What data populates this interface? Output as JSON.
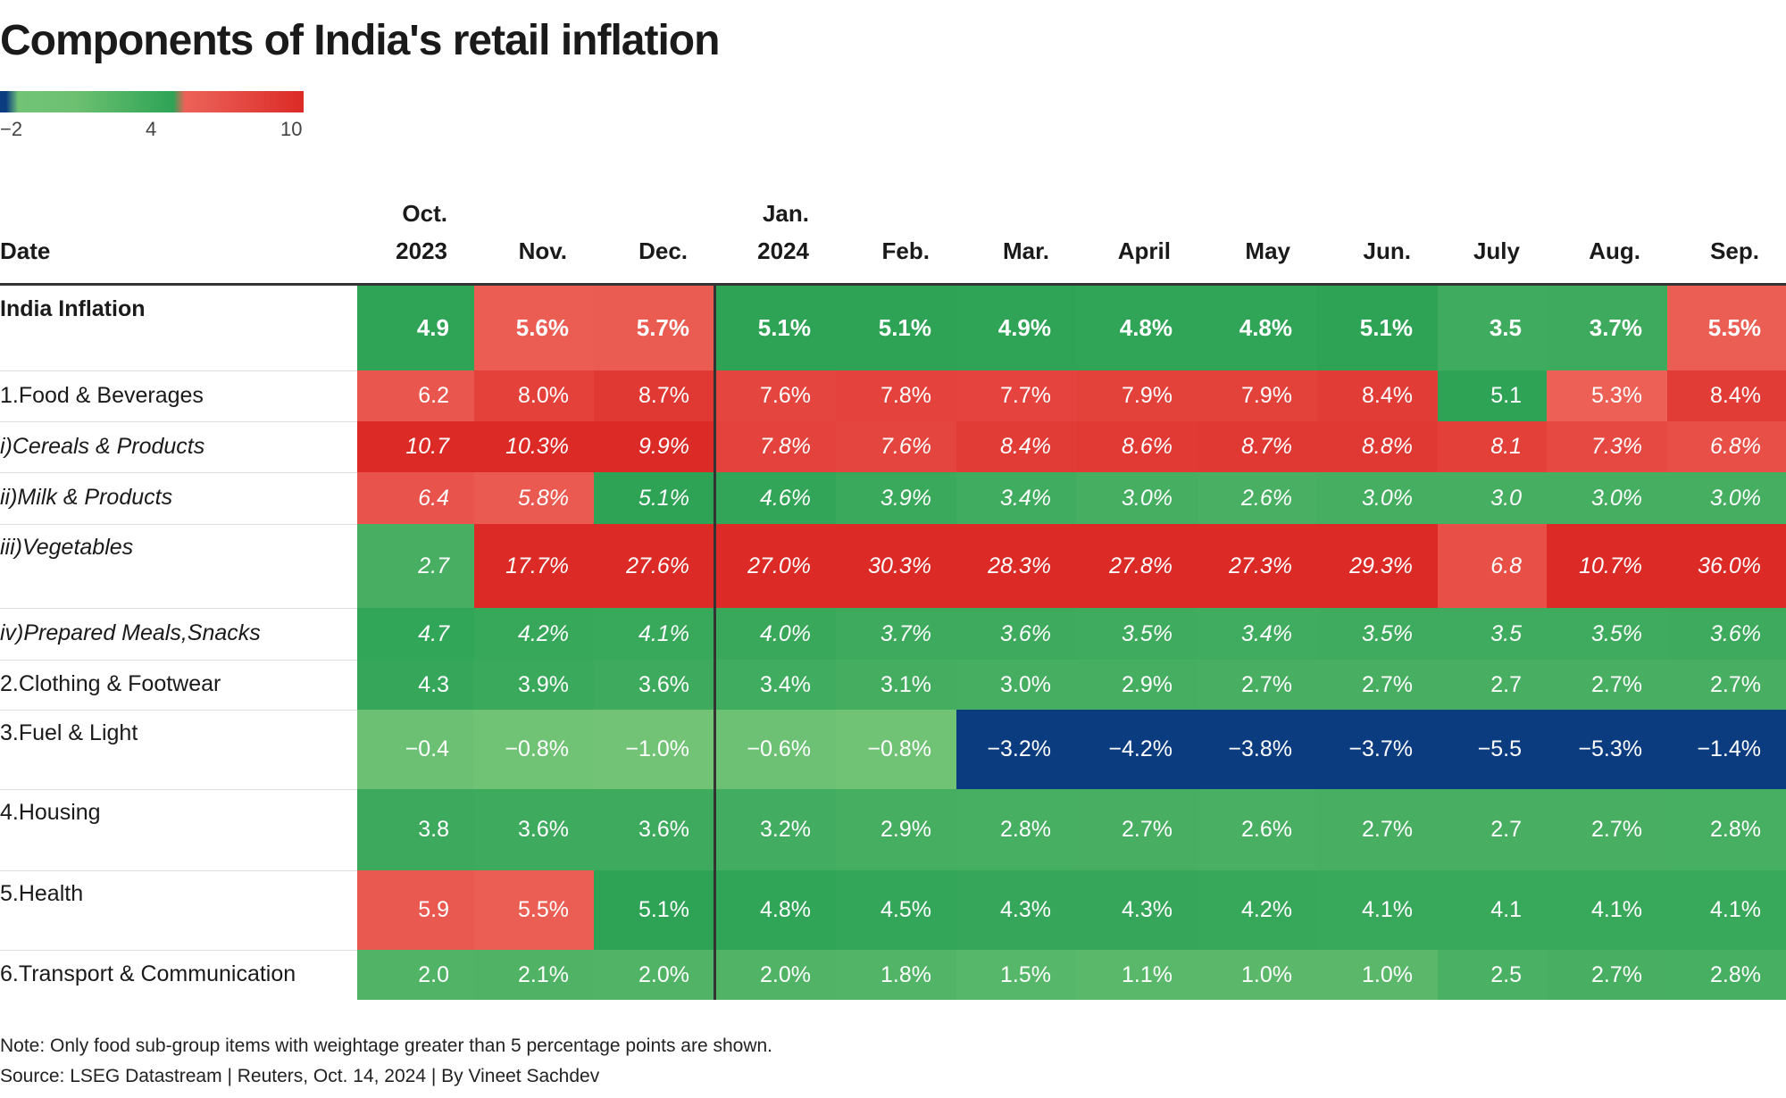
{
  "title": "Components of India's retail inflation",
  "legend": {
    "ticks": [
      "−2",
      "4",
      "10"
    ],
    "range": [
      -2,
      10
    ],
    "colors": {
      "low": "#0b3c80",
      "green_light": "#72c376",
      "green_dark": "#2ea356",
      "red_light": "#ec6157",
      "red_dark": "#dc2a26"
    }
  },
  "chart_data": {
    "type": "heatmap",
    "title": "Components of India's retail inflation",
    "row_header": "Date",
    "columns": [
      [
        "Oct.",
        "2023"
      ],
      [
        "",
        "Nov."
      ],
      [
        "",
        "Dec."
      ],
      [
        "Jan.",
        "2024"
      ],
      [
        "",
        "Feb."
      ],
      [
        "",
        "Mar."
      ],
      [
        "",
        "April"
      ],
      [
        "",
        "May"
      ],
      [
        "",
        "Jun."
      ],
      [
        "",
        "July"
      ],
      [
        "",
        "Aug."
      ],
      [
        "",
        "Sep."
      ]
    ],
    "rows": [
      {
        "label": "India Inflation",
        "style": "bold",
        "values": [
          "4.9",
          "5.6%",
          "5.7%",
          "5.1%",
          "5.1%",
          "4.9%",
          "4.8%",
          "4.8%",
          "5.1%",
          "3.5",
          "3.7%",
          "5.5%"
        ]
      },
      {
        "label": "1.Food & Beverages",
        "style": "normal",
        "values": [
          "6.2",
          "8.0%",
          "8.7%",
          "7.6%",
          "7.8%",
          "7.7%",
          "7.9%",
          "7.9%",
          "8.4%",
          "5.1",
          "5.3%",
          "8.4%"
        ]
      },
      {
        "label": "i)Cereals & Products",
        "style": "italic",
        "values": [
          "10.7",
          "10.3%",
          "9.9%",
          "7.8%",
          "7.6%",
          "8.4%",
          "8.6%",
          "8.7%",
          "8.8%",
          "8.1",
          "7.3%",
          "6.8%"
        ]
      },
      {
        "label": "ii)Milk & Products",
        "style": "italic",
        "values": [
          "6.4",
          "5.8%",
          "5.1%",
          "4.6%",
          "3.9%",
          "3.4%",
          "3.0%",
          "2.6%",
          "3.0%",
          "3.0",
          "3.0%",
          "3.0%"
        ]
      },
      {
        "label": "iii)Vegetables",
        "style": "italic",
        "values": [
          "2.7",
          "17.7%",
          "27.6%",
          "27.0%",
          "30.3%",
          "28.3%",
          "27.8%",
          "27.3%",
          "29.3%",
          "6.8",
          "10.7%",
          "36.0%"
        ]
      },
      {
        "label": "iv)Prepared Meals,Snacks",
        "style": "italic",
        "values": [
          "4.7",
          "4.2%",
          "4.1%",
          "4.0%",
          "3.7%",
          "3.6%",
          "3.5%",
          "3.4%",
          "3.5%",
          "3.5",
          "3.5%",
          "3.6%"
        ]
      },
      {
        "label": "2.Clothing & Footwear",
        "style": "normal",
        "values": [
          "4.3",
          "3.9%",
          "3.6%",
          "3.4%",
          "3.1%",
          "3.0%",
          "2.9%",
          "2.7%",
          "2.7%",
          "2.7",
          "2.7%",
          "2.7%"
        ]
      },
      {
        "label": "3.Fuel & Light",
        "style": "normal",
        "values": [
          "−0.4",
          "−0.8%",
          "−1.0%",
          "−0.6%",
          "−0.8%",
          "−3.2%",
          "−4.2%",
          "−3.8%",
          "−3.7%",
          "−5.5",
          "−5.3%",
          "−1.4%"
        ]
      },
      {
        "label": "4.Housing",
        "style": "normal",
        "values": [
          "3.8",
          "3.6%",
          "3.6%",
          "3.2%",
          "2.9%",
          "2.8%",
          "2.7%",
          "2.6%",
          "2.7%",
          "2.7",
          "2.7%",
          "2.8%"
        ]
      },
      {
        "label": "5.Health",
        "style": "normal",
        "values": [
          "5.9",
          "5.5%",
          "5.1%",
          "4.8%",
          "4.5%",
          "4.3%",
          "4.3%",
          "4.2%",
          "4.1%",
          "4.1",
          "4.1%",
          "4.1%"
        ]
      },
      {
        "label": "6.Transport & Communication",
        "style": "normal",
        "values": [
          "2.0",
          "2.1%",
          "2.0%",
          "2.0%",
          "1.8%",
          "1.5%",
          "1.1%",
          "1.0%",
          "1.0%",
          "2.5",
          "2.7%",
          "2.8%"
        ]
      }
    ]
  },
  "notes": {
    "note": "Note: Only food sub-group items with weightage greater than 5 percentage points are shown.",
    "source": "Source: LSEG Datastream | Reuters, Oct. 14, 2024 | By Vineet Sachdev"
  }
}
